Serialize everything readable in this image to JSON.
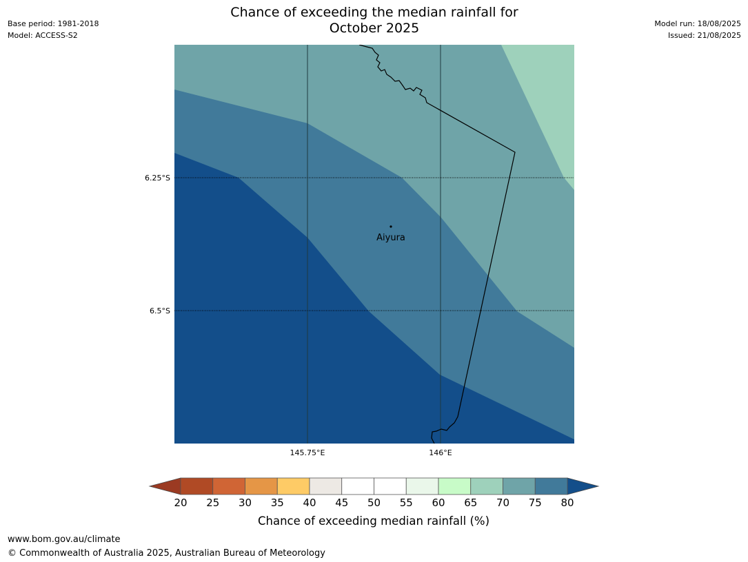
{
  "header": {
    "title_line1": "Chance of exceeding the median rainfall for",
    "title_line2": "October 2025",
    "base_period": "Base period: 1981-2018",
    "model": "Model: ACCESS-S2",
    "model_run": "Model run: 18/08/2025",
    "issued": "Issued: 21/08/2025"
  },
  "map": {
    "place_label": "Aiyura",
    "lat_labels": [
      "6.25°S",
      "6.5°S"
    ],
    "lon_labels": [
      "145.75°E",
      "146°E"
    ],
    "zone_colors": [
      "#134e8a",
      "#417a9a",
      "#6fa4a8",
      "#9ed1bb"
    ]
  },
  "colorbar": {
    "label": "Chance of exceeding median rainfall (%)",
    "ticks": [
      "20",
      "25",
      "30",
      "35",
      "40",
      "45",
      "50",
      "55",
      "60",
      "65",
      "70",
      "75",
      "80"
    ],
    "colors": [
      "#b04a25",
      "#d06535",
      "#e59646",
      "#fecb66",
      "#ede9e4",
      "#ffffff",
      "#ffffff",
      "#eaf7ea",
      "#c8fbc8",
      "#9ed1bb",
      "#6fa4a8",
      "#417a9a"
    ],
    "under_color": "#9b3a22",
    "over_color": "#134e8a"
  },
  "footer": {
    "url": "www.bom.gov.au/climate",
    "copyright": "© Commonwealth of Australia 2025, Australian Bureau of Meteorology"
  }
}
